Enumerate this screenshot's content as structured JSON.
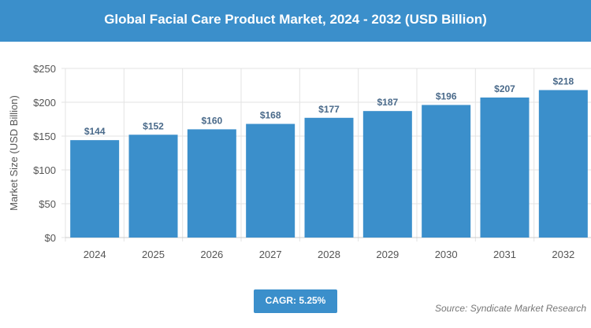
{
  "header": {
    "title": "Global Facial Care Product Market, 2024 - 2032 (USD Billion)"
  },
  "chart_data": {
    "type": "bar",
    "title": "Global Facial Care Product Market, 2024 - 2032 (USD Billion)",
    "categories": [
      "2024",
      "2025",
      "2026",
      "2027",
      "2028",
      "2029",
      "2030",
      "2031",
      "2032"
    ],
    "values": [
      144,
      152,
      160,
      168,
      177,
      187,
      196,
      207,
      218
    ],
    "data_labels": [
      "$144",
      "$152",
      "$160",
      "$168",
      "$177",
      "$187",
      "$196",
      "$207",
      "$218"
    ],
    "ylabel": "Market Size (USD Billion)",
    "xlabel": "",
    "ylim": [
      0,
      250
    ],
    "yticks": [
      "$0",
      "$50",
      "$100",
      "$150",
      "$200",
      "$250"
    ],
    "grid": true,
    "bar_color": "#3b8fcb"
  },
  "footer": {
    "cagr": "CAGR: 5.25%",
    "source": "Source: Syndicate Market Research"
  }
}
